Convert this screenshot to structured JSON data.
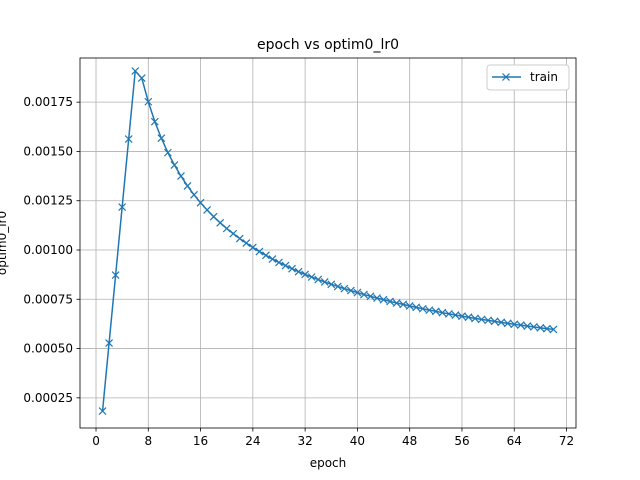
{
  "chart_data": {
    "type": "line",
    "title": "epoch vs optim0_lr0",
    "xlabel": "epoch",
    "ylabel": "optim0_lr0",
    "xlim": [
      -2.45,
      73.45
    ],
    "ylim": [
      9.7e-05,
      0.001974
    ],
    "xticks": [
      0,
      8,
      16,
      24,
      32,
      40,
      48,
      56,
      64,
      72
    ],
    "yticks": [
      0.00025,
      0.0005,
      0.00075,
      0.001,
      0.00125,
      0.0015,
      0.00175
    ],
    "ytick_labels": [
      "0.00025",
      "0.00050",
      "0.00075",
      "0.00100",
      "0.00125",
      "0.00150",
      "0.00175"
    ],
    "grid": true,
    "legend": "top-right",
    "series": [
      {
        "name": "train",
        "color": "#1f77b4",
        "marker": "x",
        "x": [
          1,
          2,
          3,
          4,
          5,
          6,
          7,
          8,
          9,
          10,
          11,
          12,
          13,
          14,
          15,
          16,
          17,
          18,
          19,
          20,
          21,
          22,
          23,
          24,
          25,
          26,
          27,
          28,
          29,
          30,
          31,
          32,
          33,
          34,
          35,
          36,
          37,
          38,
          39,
          40,
          41,
          42,
          43,
          44,
          45,
          46,
          47,
          48,
          49,
          50,
          51,
          52,
          53,
          54,
          55,
          56,
          57,
          58,
          59,
          60,
          61,
          62,
          63,
          64,
          65,
          66,
          67,
          68,
          69,
          70
        ],
        "y": [
          0.000183,
          0.000528,
          0.000873,
          0.001218,
          0.001563,
          0.001908,
          0.001872,
          0.001752,
          0.001651,
          0.001567,
          0.001494,
          0.001431,
          0.001375,
          0.001325,
          0.00128,
          0.00124,
          0.001203,
          0.001169,
          0.001138,
          0.001109,
          0.001083,
          0.001058,
          0.001035,
          0.001013,
          0.000992,
          0.000973,
          0.000954,
          0.000937,
          0.000921,
          0.000905,
          0.00089,
          0.000876,
          0.000863,
          0.00085,
          0.000838,
          0.000826,
          0.000815,
          0.000804,
          0.000794,
          0.000784,
          0.000774,
          0.000765,
          0.000756,
          0.000748,
          0.000739,
          0.000731,
          0.000724,
          0.000716,
          0.000709,
          0.000702,
          0.000695,
          0.000689,
          0.000682,
          0.000676,
          0.00067,
          0.000664,
          0.000659,
          0.000653,
          0.000648,
          0.000643,
          0.000638,
          0.000633,
          0.000628,
          0.000623,
          0.000619,
          0.000614,
          0.00061,
          0.000605,
          0.000601,
          0.000597
        ]
      }
    ]
  }
}
